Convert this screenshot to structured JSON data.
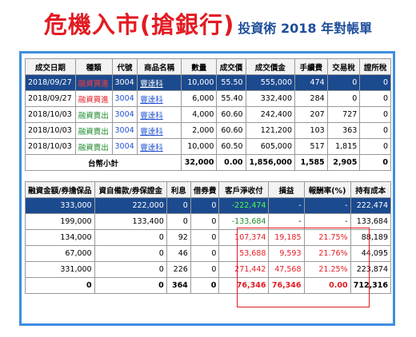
{
  "title": {
    "main": "危機入市(搶銀行)",
    "sub": "投資術 2018 年對帳單"
  },
  "table1": {
    "headers": [
      "成交日期",
      "種類",
      "代號",
      "商品名稱",
      "數量",
      "成交價",
      "成交價金",
      "手續費",
      "交易稅",
      "證所稅"
    ],
    "rows": [
      [
        "2018/09/27",
        "融資買進",
        "3004",
        "豐達科",
        "10,000",
        "55.50",
        "555,000",
        "474",
        "0",
        "0"
      ],
      [
        "2018/09/27",
        "融資買進",
        "3004",
        "豐達科",
        "6,000",
        "55.40",
        "332,400",
        "284",
        "0",
        "0"
      ],
      [
        "2018/10/03",
        "融資賣出",
        "3004",
        "豐達科",
        "4,000",
        "60.60",
        "242,400",
        "207",
        "727",
        "0"
      ],
      [
        "2018/10/03",
        "融資賣出",
        "3004",
        "豐達科",
        "2,000",
        "60.60",
        "121,200",
        "103",
        "363",
        "0"
      ],
      [
        "2018/10/03",
        "融資賣出",
        "3004",
        "豐達科",
        "10,000",
        "60.50",
        "605,000",
        "517",
        "1,815",
        "0"
      ]
    ],
    "total": {
      "label": "台幣小計",
      "qty": "32,000",
      "price": "0.00",
      "amount": "1,856,000",
      "fee": "1,585",
      "tax": "2,905",
      "cgt": "0"
    }
  },
  "table2": {
    "headers": [
      "融資金額/券擔保品",
      "資自備款/券保證金",
      "利息",
      "借券費",
      "客戶淨收付",
      "損益",
      "報酬率(%)",
      "持有成本"
    ],
    "rows": [
      [
        "333,000",
        "222,000",
        "0",
        "0",
        "-222,474",
        "-",
        "-",
        "222,474"
      ],
      [
        "199,000",
        "133,400",
        "0",
        "0",
        "-133,684",
        "-",
        "-",
        "133,684"
      ],
      [
        "134,000",
        "0",
        "92",
        "0",
        "107,374",
        "19,185",
        "21.75%",
        "88,189"
      ],
      [
        "67,000",
        "0",
        "46",
        "0",
        "53,688",
        "9,593",
        "21.76%",
        "44,095"
      ],
      [
        "331,000",
        "0",
        "226",
        "0",
        "271,442",
        "47,568",
        "21.25%",
        "223,874"
      ]
    ],
    "total": [
      "0",
      "0",
      "364",
      "0",
      "76,346",
      "76,346",
      "0.00",
      "712,316"
    ]
  },
  "colors": {
    "title_red": "#e31b23",
    "title_blue": "#1f4e9a",
    "frame_blue": "#3d8fe0",
    "selected_row": "#1c4a8e",
    "highlight_box": "#e31b23"
  }
}
